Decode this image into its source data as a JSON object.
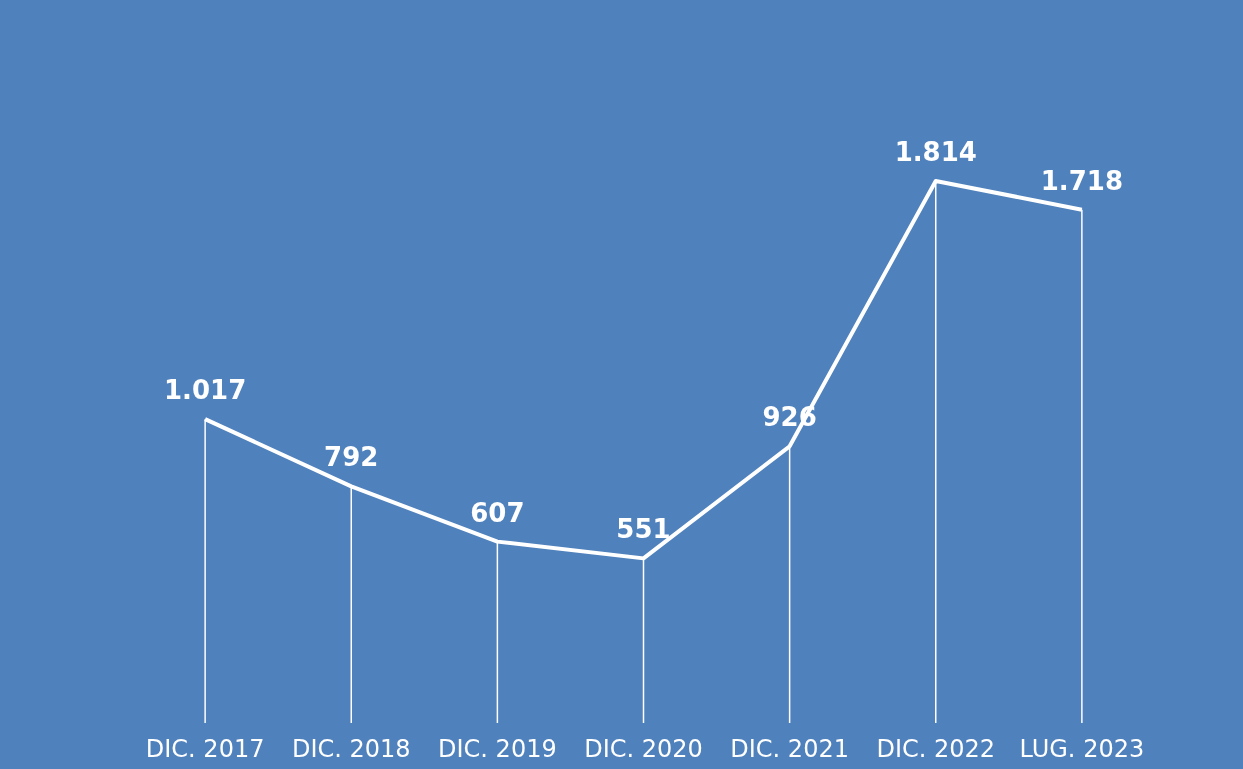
{
  "chart_data": {
    "type": "line",
    "categories": [
      "DIC. 2017",
      "DIC. 2018",
      "DIC. 2019",
      "DIC. 2020",
      "DIC. 2021",
      "DIC. 2022",
      "LUG. 2023"
    ],
    "series": [
      {
        "color": "#ffffff",
        "values": [
          1017,
          792,
          607,
          551,
          926,
          1814,
          1718
        ],
        "value_labels": [
          "1.017",
          "792",
          "607",
          "551",
          "926",
          "1.814",
          "1.718"
        ]
      }
    ],
    "data_labels": true,
    "grid": "x",
    "marker": "none",
    "line_style": "solid"
  }
}
